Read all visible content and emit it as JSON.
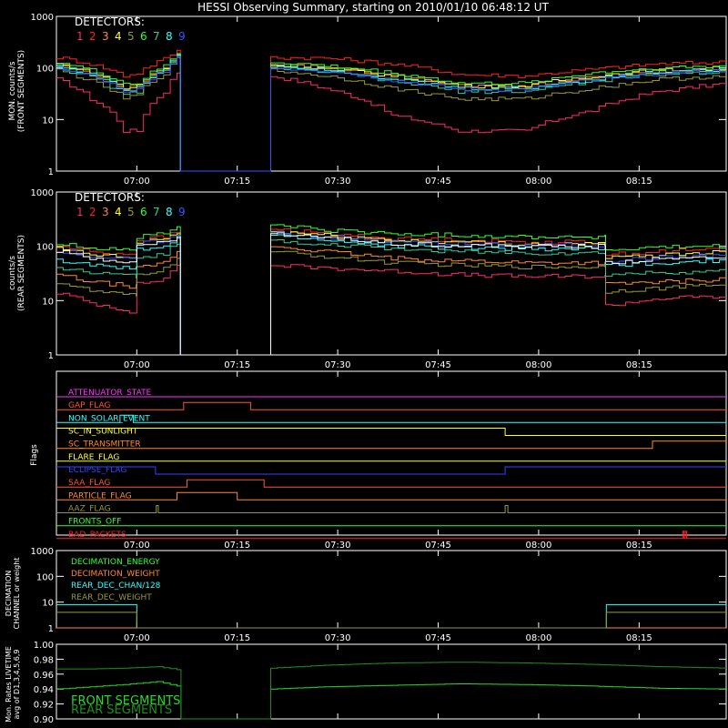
{
  "title": "HESSI Observing Summary, starting on 2010/01/10 06:48:12 UT",
  "colors": {
    "d1": "#ff2a6d",
    "d2": "#ff2222",
    "d3": "#ff8833",
    "d4": "#ffff33",
    "d5": "#999933",
    "d6": "#33ff33",
    "d7": "#33cc99",
    "d8": "#33ffff",
    "d9": "#3355ff",
    "white": "#ffffff",
    "axis": "#ffffff",
    "bg": "#000000"
  },
  "time_ticks": [
    "07:00",
    "07:15",
    "07:30",
    "07:45",
    "08:00",
    "08:15"
  ],
  "time_tick_minutes": [
    12,
    27,
    42,
    57,
    72,
    87
  ],
  "xlim_minutes": [
    0,
    100
  ],
  "gap_minutes": [
    18.5,
    31.5
  ],
  "chart_data": [
    {
      "type": "line",
      "id": "front",
      "ylabel": "MON. counts/s (FRONT SEGMENTS)",
      "ylabel_lines": [
        "MON. counts/s",
        "(FRONT SEGMENTS)"
      ],
      "yscale": "log",
      "ylim": [
        1,
        1000
      ],
      "yticks": [
        "1",
        "10",
        "100",
        "1000"
      ],
      "legend_title": "DETECTORS:",
      "detectors": [
        "1",
        "2",
        "3",
        "4",
        "5",
        "6",
        "7",
        "8",
        "9"
      ],
      "x_minutes": [
        0,
        5,
        10,
        12,
        16,
        18,
        18.5,
        31.5,
        32,
        40,
        50,
        60,
        70,
        80,
        90,
        100
      ],
      "series": [
        {
          "name": "1",
          "color_key": "d1",
          "values": [
            60,
            25,
            6,
            6,
            35,
            80,
            1,
            1,
            70,
            40,
            12,
            6,
            6,
            15,
            35,
            50
          ]
        },
        {
          "name": "2",
          "color_key": "d2",
          "values": [
            160,
            120,
            70,
            80,
            150,
            220,
            1,
            1,
            160,
            155,
            120,
            75,
            70,
            95,
            120,
            130
          ]
        },
        {
          "name": "3",
          "color_key": "d3",
          "values": [
            110,
            80,
            40,
            45,
            100,
            180,
            1,
            1,
            120,
            100,
            70,
            45,
            45,
            65,
            85,
            100
          ]
        },
        {
          "name": "4",
          "color_key": "d4",
          "values": [
            120,
            80,
            40,
            45,
            100,
            180,
            1,
            1,
            115,
            100,
            70,
            45,
            45,
            70,
            90,
            100
          ]
        },
        {
          "name": "5",
          "color_key": "d5",
          "values": [
            90,
            55,
            25,
            30,
            80,
            160,
            1,
            1,
            90,
            70,
            40,
            25,
            25,
            40,
            60,
            70
          ]
        },
        {
          "name": "6",
          "color_key": "d6",
          "values": [
            130,
            90,
            50,
            50,
            110,
            190,
            1,
            1,
            130,
            110,
            80,
            50,
            50,
            80,
            100,
            110
          ]
        },
        {
          "name": "7",
          "color_key": "d7",
          "values": [
            100,
            65,
            30,
            35,
            90,
            170,
            1,
            1,
            100,
            85,
            55,
            35,
            35,
            55,
            75,
            85
          ]
        },
        {
          "name": "8",
          "color_key": "d8",
          "values": [
            110,
            75,
            35,
            40,
            95,
            175,
            1,
            1,
            110,
            95,
            60,
            40,
            40,
            60,
            85,
            95
          ]
        },
        {
          "name": "9",
          "color_key": "d9",
          "values": [
            100,
            70,
            32,
            38,
            90,
            170,
            1,
            1,
            100,
            90,
            58,
            38,
            38,
            58,
            80,
            90
          ]
        }
      ]
    },
    {
      "type": "line",
      "id": "rear",
      "ylabel": "counts/s (REAR SEGMENTS)",
      "ylabel_lines": [
        "counts/s",
        "(REAR SEGMENTS)"
      ],
      "yscale": "log",
      "ylim": [
        1,
        1000
      ],
      "yticks": [
        "1",
        "10",
        "100",
        "1000"
      ],
      "legend_title": "DETECTORS:",
      "detectors": [
        "1",
        "2",
        "3",
        "4",
        "5",
        "6",
        "7",
        "8",
        "9"
      ],
      "x_minutes": [
        0,
        5,
        11.9,
        12,
        16,
        18,
        18.5,
        31.5,
        32,
        40,
        50,
        60,
        70,
        81.9,
        82,
        90,
        100
      ],
      "series": [
        {
          "name": "1",
          "color_key": "d1",
          "values": [
            14,
            9,
            6,
            20,
            25,
            45,
            1,
            1,
            45,
            40,
            35,
            30,
            28,
            28,
            8,
            11,
            12
          ]
        },
        {
          "name": "2",
          "color_key": "d2",
          "values": [
            100,
            80,
            70,
            130,
            150,
            180,
            1,
            1,
            210,
            170,
            140,
            130,
            120,
            120,
            70,
            80,
            90
          ]
        },
        {
          "name": "3",
          "color_key": "d3",
          "values": [
            30,
            22,
            18,
            40,
            50,
            80,
            1,
            1,
            100,
            80,
            60,
            55,
            50,
            50,
            20,
            22,
            25
          ]
        },
        {
          "name": "4",
          "color_key": "d4",
          "values": [
            90,
            70,
            60,
            120,
            140,
            170,
            1,
            1,
            190,
            160,
            130,
            120,
            110,
            110,
            60,
            70,
            80
          ]
        },
        {
          "name": "5",
          "color_key": "d5",
          "values": [
            22,
            15,
            12,
            30,
            38,
            60,
            1,
            1,
            80,
            65,
            50,
            45,
            42,
            42,
            15,
            17,
            20
          ]
        },
        {
          "name": "6",
          "color_key": "d6",
          "values": [
            110,
            95,
            85,
            150,
            170,
            230,
            1,
            1,
            250,
            200,
            170,
            160,
            150,
            150,
            85,
            95,
            100
          ]
        },
        {
          "name": "7",
          "color_key": "d7",
          "values": [
            40,
            32,
            28,
            60,
            75,
            110,
            1,
            1,
            130,
            110,
            90,
            80,
            75,
            75,
            30,
            33,
            35
          ]
        },
        {
          "name": "8",
          "color_key": "d8",
          "values": [
            55,
            45,
            38,
            85,
            100,
            140,
            1,
            1,
            160,
            130,
            100,
            95,
            90,
            90,
            45,
            50,
            55
          ]
        },
        {
          "name": "9",
          "color_key": "d9",
          "values": [
            85,
            65,
            55,
            110,
            130,
            160,
            1,
            1,
            180,
            150,
            120,
            110,
            105,
            105,
            55,
            62,
            70
          ]
        },
        {
          "name": "",
          "color_key": "white",
          "values": [
            80,
            60,
            52,
            100,
            120,
            150,
            1,
            1,
            170,
            145,
            115,
            105,
            100,
            100,
            50,
            58,
            65
          ]
        }
      ]
    },
    {
      "type": "line",
      "id": "flags",
      "ylabel": "Flags",
      "flags": [
        {
          "name": "ATTENUATOR_STATE",
          "color": "#ff33ff",
          "segments": [
            [
              0,
              0,
              100
            ]
          ]
        },
        {
          "name": "GAP_FLAG",
          "color": "#ff5533",
          "segments": [
            [
              0,
              0,
              19
            ],
            [
              1,
              19,
              29
            ],
            [
              0,
              29,
              100
            ]
          ]
        },
        {
          "name": "NON_SOLAR_EVENT",
          "color": "#33ffff",
          "segments": [
            [
              0,
              0,
              9.5
            ],
            [
              1,
              9.5,
              11.5
            ],
            [
              0,
              11.5,
              100
            ]
          ]
        },
        {
          "name": "SC_IN_SUNLIGHT",
          "color": "#ffff33",
          "segments": [
            [
              1,
              0,
              67
            ],
            [
              0,
              67,
              100
            ]
          ]
        },
        {
          "name": "SC_TRANSMITTER",
          "color": "#ff8833",
          "segments": [
            [
              0,
              0,
              89
            ],
            [
              1,
              89,
              100
            ]
          ]
        },
        {
          "name": "FLARE_FLAG",
          "color": "#ffff33",
          "segments": [
            [
              0,
              0,
              100
            ]
          ]
        },
        {
          "name": "ECLIPSE_FLAG",
          "color": "#3344ff",
          "segments": [
            [
              1,
              0,
              14.8
            ],
            [
              0,
              14.8,
              67
            ],
            [
              1,
              67,
              100
            ]
          ]
        },
        {
          "name": "SAA_FLAG",
          "color": "#ff5533",
          "segments": [
            [
              0,
              0,
              19.5
            ],
            [
              1,
              19.5,
              31
            ],
            [
              0,
              31,
              100
            ]
          ]
        },
        {
          "name": "PARTICLE_FLAG",
          "color": "#ff8833",
          "segments": [
            [
              0,
              0,
              18
            ],
            [
              1,
              18,
              27
            ],
            [
              0,
              27,
              100
            ]
          ]
        },
        {
          "name": "AAZ_FLAG",
          "color": "#999933",
          "segments": [
            [
              0,
              0,
              14.9
            ],
            [
              1,
              14.9,
              15.2
            ],
            [
              0,
              15.2,
              67
            ],
            [
              1,
              67,
              67.4
            ],
            [
              0,
              67.4,
              100
            ]
          ]
        },
        {
          "name": "FRONTS_OFF",
          "color": "#33ff33",
          "segments": [
            [
              0,
              0,
              100
            ]
          ]
        },
        {
          "name": "BAD_PACKETS",
          "color": "#ff2222",
          "segments": [
            [
              0,
              0,
              93.5
            ],
            [
              1,
              93.5,
              93.7
            ],
            [
              0,
              93.7,
              93.9
            ],
            [
              1,
              93.9,
              94.1
            ],
            [
              0,
              94.1,
              100
            ]
          ]
        }
      ]
    },
    {
      "type": "line",
      "id": "decimation",
      "ylabel": "DECIMATION CHANNEL or weight",
      "ylabel_lines": [
        "DECIMATION",
        "CHANNEL or weight"
      ],
      "yscale": "log",
      "ylim": [
        1,
        1000
      ],
      "yticks": [
        "1",
        "10",
        "100",
        "1000"
      ],
      "x_minutes": [
        0,
        11.9,
        12,
        82,
        82.1,
        100
      ],
      "series": [
        {
          "name": "DECIMATION_ENERGY",
          "color_key": "d6",
          "values": [
            1,
            1,
            1,
            1,
            1,
            1
          ]
        },
        {
          "name": "DECIMATION_WEIGHT",
          "color_key": "d3",
          "values": [
            1,
            1,
            1,
            1,
            1,
            1
          ]
        },
        {
          "name": "REAR_DEC_CHAN/128",
          "color_key": "d8",
          "values": [
            8,
            8,
            1,
            1,
            8,
            8
          ]
        },
        {
          "name": "REAR_DEC_WEIGHT",
          "color_key": "d5",
          "values": [
            4,
            4,
            1,
            1,
            4,
            4
          ]
        }
      ]
    },
    {
      "type": "line",
      "id": "livetime",
      "ylabel": "Mon. Rates LIVETIME avg of D1,3,4,5,6,9",
      "ylabel_lines": [
        "Mon. Rates LIVETIME",
        "avg of D1,3,4,5,6,9"
      ],
      "ylim": [
        0.9,
        1.0
      ],
      "yticks": [
        "0.90",
        "0.92",
        "0.94",
        "0.96",
        "0.98",
        "1.00"
      ],
      "x_minutes": [
        0,
        5,
        10,
        15,
        18,
        18.6,
        31.5,
        32,
        40,
        50,
        60,
        70,
        80,
        90,
        100
      ],
      "series": [
        {
          "name": "FRONT SEGMENTS",
          "color_key": "d6",
          "values": [
            0.94,
            0.943,
            0.946,
            0.95,
            0.944,
            0.9,
            0.9,
            0.94,
            0.943,
            0.945,
            0.947,
            0.946,
            0.944,
            0.941,
            0.94
          ]
        },
        {
          "name": "REAR SEGMENTS",
          "color_key": "d6",
          "values": [
            0.967,
            0.967,
            0.968,
            0.97,
            0.966,
            0.9,
            0.9,
            0.968,
            0.972,
            0.975,
            0.976,
            0.975,
            0.973,
            0.97,
            0.968
          ]
        }
      ]
    }
  ]
}
